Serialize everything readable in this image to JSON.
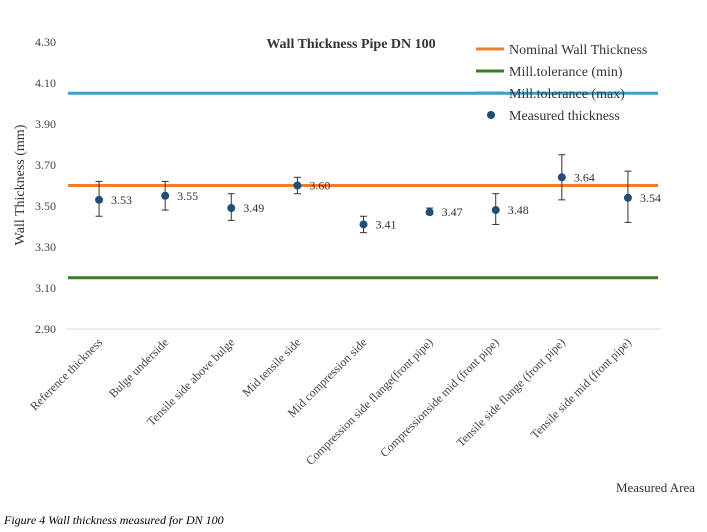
{
  "chart_data": {
    "type": "scatter",
    "title": "Wall Thickness Pipe DN 100",
    "xlabel": "Measured Area",
    "ylabel": "Wall Thickness (mm)",
    "ylim": [
      2.9,
      4.3
    ],
    "yticks": [
      "2.90",
      "3.10",
      "3.30",
      "3.50",
      "3.70",
      "3.90",
      "4.10",
      "4.30"
    ],
    "grid": false,
    "legend_position": "top-right",
    "categories": [
      "Reference thickness",
      "Bulge underside",
      "Tensile side above bulge",
      "Mid tensile side",
      "Mid compression side",
      "Compression side flange(front pipe)",
      "Compressionside mid (front pipe)",
      "Tensile side flange (front pipe)",
      "Tensile side mid (front pipe)"
    ],
    "series": [
      {
        "name": "Nominal Wall Thickness",
        "kind": "line",
        "color": "#ED7D31",
        "value": 3.6
      },
      {
        "name": "Mill.tolerance (min)",
        "kind": "line",
        "color": "#3A7D22",
        "value": 3.15
      },
      {
        "name": "Mill.tolerance (max)",
        "kind": "line",
        "color": "#36A2D0",
        "value": 4.05
      },
      {
        "name": "Measured thickness",
        "kind": "points",
        "color": "#1F4E79",
        "values": [
          3.53,
          3.55,
          3.49,
          3.6,
          3.41,
          3.47,
          3.48,
          3.64,
          3.54
        ],
        "labels": [
          "3.53",
          "3.55",
          "3.49",
          "3.60",
          "3.41",
          "3.47",
          "3.48",
          "3.64",
          "3.54"
        ],
        "error_low": [
          3.45,
          3.48,
          3.43,
          3.56,
          3.37,
          3.46,
          3.41,
          3.53,
          3.42
        ],
        "error_high": [
          3.62,
          3.62,
          3.56,
          3.64,
          3.45,
          3.49,
          3.56,
          3.75,
          3.67
        ]
      }
    ]
  },
  "caption": "Figure 4 Wall thickness measured for DN 100"
}
